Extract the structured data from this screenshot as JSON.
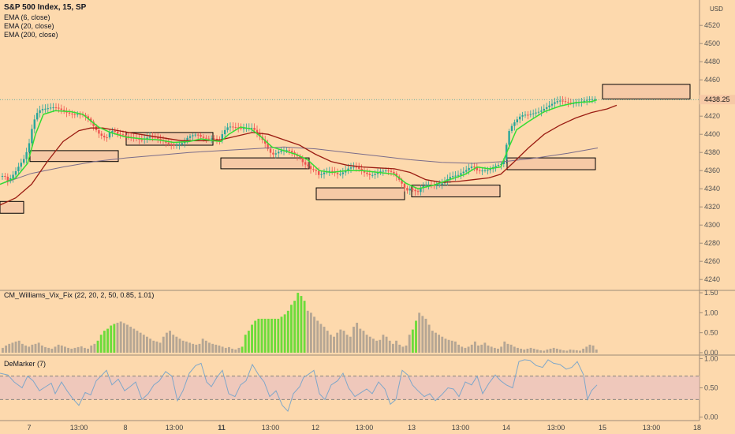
{
  "header": {
    "title": "S&P 500 Index, 15, SP",
    "indicators": [
      "EMA (6, close)",
      "EMA (20, close)",
      "EMA (200, close)"
    ]
  },
  "currency": "USD",
  "last_price": "4438.25",
  "colors": {
    "background": "#fdd9ad",
    "ema6": "#33dd33",
    "ema20": "#9b1c12",
    "ema200": "#7a6c8a",
    "candle_up": "#26a69a",
    "candle_down": "#ef5350",
    "vix_green": "#6cdc3a",
    "vix_gray": "#b5a694",
    "demarker": "#7fa7c9",
    "zone_fill": "#f6c9a6",
    "band_fill": "#e8c0c0"
  },
  "chart_data": [
    {
      "type": "candlestick",
      "title": "S&P 500 Index, 15, SP",
      "y_axis": {
        "ticks": [
          4240,
          4260,
          4280,
          4300,
          4320,
          4340,
          4360,
          4380,
          4400,
          4420,
          4440,
          4460,
          4480,
          4500,
          4520
        ],
        "ylim": [
          4228,
          4548
        ]
      },
      "x_axis": {
        "ticks": [
          "7",
          "13:00",
          "8",
          "13:00",
          "11",
          "13:00",
          "12",
          "13:00",
          "13",
          "13:00",
          "14",
          "13:00",
          "15",
          "13:00",
          "18"
        ]
      },
      "close_path": [
        [
          0,
          4354
        ],
        [
          5,
          4358
        ],
        [
          10,
          4350
        ],
        [
          20,
          4358
        ],
        [
          30,
          4370
        ],
        [
          36,
          4385
        ],
        [
          41,
          4410
        ],
        [
          46,
          4425
        ],
        [
          52,
          4430
        ],
        [
          60,
          4428
        ],
        [
          70,
          4427
        ],
        [
          80,
          4426
        ],
        [
          90,
          4425
        ],
        [
          100,
          4423
        ],
        [
          108,
          4418
        ],
        [
          115,
          4412
        ],
        [
          120,
          4406
        ],
        [
          125,
          4402
        ],
        [
          130,
          4400
        ],
        [
          135,
          4398
        ],
        [
          140,
          4405
        ],
        [
          145,
          4403
        ],
        [
          150,
          4398
        ],
        [
          160,
          4396
        ],
        [
          170,
          4398
        ],
        [
          180,
          4396
        ],
        [
          190,
          4396
        ],
        [
          200,
          4393
        ],
        [
          210,
          4392
        ],
        [
          220,
          4390
        ],
        [
          230,
          4389
        ],
        [
          240,
          4395
        ],
        [
          250,
          4400
        ],
        [
          260,
          4398
        ],
        [
          270,
          4396
        ],
        [
          278,
          4390
        ],
        [
          283,
          4400
        ],
        [
          290,
          4408
        ],
        [
          300,
          4410
        ],
        [
          310,
          4408
        ],
        [
          320,
          4405
        ],
        [
          325,
          4400
        ],
        [
          330,
          4395
        ],
        [
          335,
          4392
        ],
        [
          340,
          4385
        ],
        [
          345,
          4380
        ],
        [
          355,
          4382
        ],
        [
          365,
          4380
        ],
        [
          370,
          4378
        ],
        [
          375,
          4376
        ],
        [
          380,
          4376
        ],
        [
          385,
          4370
        ],
        [
          390,
          4368
        ],
        [
          395,
          4362
        ],
        [
          400,
          4360
        ],
        [
          405,
          4352
        ],
        [
          410,
          4355
        ],
        [
          420,
          4360
        ],
        [
          430,
          4358
        ],
        [
          440,
          4362
        ],
        [
          450,
          4362
        ],
        [
          455,
          4360
        ],
        [
          460,
          4358
        ],
        [
          470,
          4357
        ],
        [
          480,
          4360
        ],
        [
          490,
          4358
        ],
        [
          500,
          4355
        ],
        [
          507,
          4350
        ],
        [
          512,
          4345
        ],
        [
          515,
          4340
        ],
        [
          520,
          4342
        ],
        [
          525,
          4338
        ],
        [
          530,
          4335
        ],
        [
          535,
          4340
        ],
        [
          540,
          4342
        ],
        [
          550,
          4345
        ],
        [
          560,
          4348
        ],
        [
          570,
          4352
        ],
        [
          580,
          4352
        ],
        [
          590,
          4360
        ],
        [
          595,
          4365
        ],
        [
          600,
          4368
        ],
        [
          605,
          4362
        ],
        [
          610,
          4360
        ],
        [
          620,
          4358
        ],
        [
          630,
          4365
        ],
        [
          638,
          4370
        ],
        [
          641,
          4385
        ],
        [
          645,
          4405
        ],
        [
          650,
          4412
        ],
        [
          660,
          4418
        ],
        [
          670,
          4420
        ],
        [
          680,
          4426
        ],
        [
          690,
          4430
        ],
        [
          700,
          4432
        ],
        [
          710,
          4435
        ],
        [
          720,
          4436
        ],
        [
          730,
          4437
        ],
        [
          740,
          4436
        ],
        [
          750,
          4436
        ],
        [
          757,
          4438
        ]
      ],
      "ema6": [
        [
          0,
          4345
        ],
        [
          20,
          4352
        ],
        [
          35,
          4368
        ],
        [
          45,
          4400
        ],
        [
          55,
          4422
        ],
        [
          70,
          4426
        ],
        [
          90,
          4425
        ],
        [
          105,
          4422
        ],
        [
          115,
          4415
        ],
        [
          125,
          4408
        ],
        [
          140,
          4402
        ],
        [
          160,
          4397
        ],
        [
          180,
          4395
        ],
        [
          200,
          4394
        ],
        [
          220,
          4391
        ],
        [
          240,
          4392
        ],
        [
          255,
          4395
        ],
        [
          270,
          4393
        ],
        [
          280,
          4392
        ],
        [
          290,
          4400
        ],
        [
          305,
          4408
        ],
        [
          318,
          4406
        ],
        [
          330,
          4398
        ],
        [
          345,
          4386
        ],
        [
          360,
          4382
        ],
        [
          375,
          4378
        ],
        [
          390,
          4372
        ],
        [
          405,
          4360
        ],
        [
          420,
          4358
        ],
        [
          440,
          4360
        ],
        [
          460,
          4360
        ],
        [
          480,
          4358
        ],
        [
          500,
          4356
        ],
        [
          515,
          4346
        ],
        [
          530,
          4340
        ],
        [
          550,
          4344
        ],
        [
          570,
          4350
        ],
        [
          590,
          4356
        ],
        [
          605,
          4364
        ],
        [
          620,
          4362
        ],
        [
          635,
          4364
        ],
        [
          645,
          4385
        ],
        [
          655,
          4405
        ],
        [
          670,
          4414
        ],
        [
          690,
          4425
        ],
        [
          710,
          4431
        ],
        [
          730,
          4435
        ],
        [
          750,
          4436
        ],
        [
          757,
          4438
        ]
      ],
      "ema20": [
        [
          0,
          4322
        ],
        [
          20,
          4330
        ],
        [
          40,
          4345
        ],
        [
          60,
          4370
        ],
        [
          80,
          4392
        ],
        [
          100,
          4404
        ],
        [
          115,
          4407
        ],
        [
          130,
          4407
        ],
        [
          150,
          4404
        ],
        [
          170,
          4401
        ],
        [
          200,
          4397
        ],
        [
          230,
          4393
        ],
        [
          260,
          4393
        ],
        [
          280,
          4394
        ],
        [
          300,
          4398
        ],
        [
          320,
          4402
        ],
        [
          340,
          4400
        ],
        [
          360,
          4394
        ],
        [
          380,
          4388
        ],
        [
          400,
          4378
        ],
        [
          420,
          4370
        ],
        [
          440,
          4366
        ],
        [
          460,
          4364
        ],
        [
          480,
          4363
        ],
        [
          500,
          4362
        ],
        [
          520,
          4358
        ],
        [
          540,
          4350
        ],
        [
          560,
          4347
        ],
        [
          580,
          4348
        ],
        [
          600,
          4350
        ],
        [
          620,
          4352
        ],
        [
          635,
          4356
        ],
        [
          650,
          4368
        ],
        [
          670,
          4385
        ],
        [
          690,
          4400
        ],
        [
          710,
          4410
        ],
        [
          730,
          4418
        ],
        [
          750,
          4424
        ],
        [
          770,
          4428
        ],
        [
          782,
          4432
        ]
      ],
      "ema200": [
        [
          0,
          4345
        ],
        [
          40,
          4357
        ],
        [
          80,
          4364
        ],
        [
          120,
          4370
        ],
        [
          160,
          4374
        ],
        [
          200,
          4377
        ],
        [
          240,
          4380
        ],
        [
          280,
          4382
        ],
        [
          320,
          4384
        ],
        [
          360,
          4386
        ],
        [
          400,
          4384
        ],
        [
          440,
          4380
        ],
        [
          480,
          4376
        ],
        [
          520,
          4372
        ],
        [
          560,
          4369
        ],
        [
          600,
          4368
        ],
        [
          640,
          4370
        ],
        [
          680,
          4374
        ],
        [
          720,
          4379
        ],
        [
          758,
          4385
        ]
      ]
    },
    {
      "type": "bar",
      "title": "CM_Williams_Vix_Fix (22, 20, 2, 50, 0.85, 1.01)",
      "y_axis": {
        "ticks": [
          0.0,
          0.5,
          1.0,
          1.5
        ],
        "ylim": [
          -0.06,
          1.56
        ]
      },
      "values": [
        0.12,
        0.18,
        0.22,
        0.25,
        0.28,
        0.3,
        0.22,
        0.18,
        0.15,
        0.2,
        0.22,
        0.25,
        0.18,
        0.14,
        0.12,
        0.1,
        0.15,
        0.2,
        0.18,
        0.15,
        0.12,
        0.1,
        0.12,
        0.14,
        0.16,
        0.12,
        0.1,
        0.18,
        0.22,
        0.3,
        0.45,
        0.55,
        0.6,
        0.68,
        0.72,
        0.75,
        0.78,
        0.74,
        0.7,
        0.65,
        0.6,
        0.55,
        0.5,
        0.45,
        0.4,
        0.35,
        0.3,
        0.28,
        0.25,
        0.4,
        0.5,
        0.55,
        0.45,
        0.4,
        0.35,
        0.3,
        0.28,
        0.25,
        0.22,
        0.2,
        0.22,
        0.35,
        0.3,
        0.25,
        0.22,
        0.2,
        0.18,
        0.15,
        0.12,
        0.14,
        0.1,
        0.08,
        0.12,
        0.15,
        0.45,
        0.55,
        0.7,
        0.8,
        0.85,
        0.85,
        0.85,
        0.85,
        0.85,
        0.85,
        0.85,
        0.9,
        0.96,
        1.05,
        1.2,
        1.3,
        1.5,
        1.42,
        1.3,
        1.05,
        1.0,
        0.9,
        0.8,
        0.72,
        0.65,
        0.55,
        0.45,
        0.4,
        0.5,
        0.58,
        0.55,
        0.45,
        0.4,
        0.65,
        0.75,
        0.6,
        0.55,
        0.45,
        0.4,
        0.35,
        0.3,
        0.32,
        0.45,
        0.4,
        0.3,
        0.22,
        0.3,
        0.2,
        0.15,
        0.18,
        0.45,
        0.58,
        0.8,
        1.0,
        0.92,
        0.85,
        0.7,
        0.55,
        0.5,
        0.45,
        0.4,
        0.35,
        0.32,
        0.3,
        0.28,
        0.2,
        0.15,
        0.12,
        0.15,
        0.2,
        0.28,
        0.18,
        0.2,
        0.25,
        0.18,
        0.15,
        0.12,
        0.1,
        0.15,
        0.28,
        0.22,
        0.2,
        0.15,
        0.12,
        0.1,
        0.08,
        0.1,
        0.12,
        0.1,
        0.08,
        0.06,
        0.05,
        0.08,
        0.1,
        0.12,
        0.1,
        0.08,
        0.06,
        0.05,
        0.08,
        0.07,
        0.06,
        0.05,
        0.1,
        0.15,
        0.2,
        0.18,
        0.08
      ],
      "highlighted_ranges": [
        [
          29,
          34
        ],
        [
          73,
          92
        ],
        [
          125,
          126
        ],
        [
          182,
          183
        ]
      ]
    },
    {
      "type": "line",
      "title": "DeMarker (7)",
      "y_axis": {
        "ticks": [
          0.0,
          0.5,
          1.0
        ],
        "ylim": [
          -0.06,
          1.06
        ]
      },
      "reference_lines": [
        0.3,
        0.7
      ],
      "x": [
        0,
        10,
        18,
        28,
        35,
        42,
        50,
        58,
        65,
        70,
        78,
        85,
        92,
        100,
        108,
        115,
        122,
        128,
        135,
        142,
        150,
        158,
        165,
        172,
        180,
        188,
        195,
        202,
        210,
        218,
        225,
        232,
        240,
        248,
        255,
        262,
        268,
        275,
        282,
        290,
        298,
        305,
        312,
        320,
        328,
        335,
        342,
        350,
        358,
        365,
        372,
        380,
        385,
        390,
        398,
        405,
        412,
        420,
        428,
        435,
        442,
        450,
        458,
        465,
        472,
        480,
        488,
        495,
        502,
        510,
        517,
        523,
        530,
        538,
        545,
        552,
        560,
        568,
        575,
        582,
        590,
        598,
        605,
        612,
        620,
        628,
        635,
        642,
        650,
        658,
        665,
        672,
        680,
        688,
        695,
        702,
        710,
        718,
        725,
        732,
        740,
        745,
        750,
        757
      ],
      "y": [
        0.75,
        0.72,
        0.6,
        0.5,
        0.7,
        0.62,
        0.45,
        0.52,
        0.58,
        0.4,
        0.6,
        0.45,
        0.32,
        0.2,
        0.42,
        0.38,
        0.62,
        0.7,
        0.8,
        0.55,
        0.65,
        0.45,
        0.52,
        0.6,
        0.3,
        0.4,
        0.55,
        0.62,
        0.78,
        0.7,
        0.28,
        0.45,
        0.75,
        0.88,
        0.92,
        0.6,
        0.52,
        0.68,
        0.8,
        0.4,
        0.35,
        0.55,
        0.62,
        0.9,
        0.72,
        0.6,
        0.35,
        0.45,
        0.2,
        0.1,
        0.4,
        0.52,
        0.68,
        0.72,
        0.8,
        0.4,
        0.3,
        0.55,
        0.62,
        0.75,
        0.5,
        0.35,
        0.42,
        0.48,
        0.4,
        0.6,
        0.48,
        0.22,
        0.3,
        0.8,
        0.72,
        0.55,
        0.45,
        0.35,
        0.4,
        0.28,
        0.38,
        0.5,
        0.48,
        0.35,
        0.6,
        0.55,
        0.7,
        0.4,
        0.58,
        0.72,
        0.62,
        0.55,
        0.5,
        0.95,
        0.98,
        0.97,
        0.88,
        0.85,
        0.98,
        0.92,
        0.9,
        0.82,
        0.85,
        0.95,
        0.72,
        0.3,
        0.45,
        0.55
      ]
    }
  ],
  "zones": [
    {
      "x1": 0,
      "x2": 30,
      "y1": 4313,
      "y2": 4326
    },
    {
      "x1": 38,
      "x2": 150,
      "y1": 4370,
      "y2": 4382
    },
    {
      "x1": 160,
      "x2": 270,
      "y1": 4388,
      "y2": 4402
    },
    {
      "x1": 280,
      "x2": 392,
      "y1": 4362,
      "y2": 4374
    },
    {
      "x1": 401,
      "x2": 513,
      "y1": 4328,
      "y2": 4341
    },
    {
      "x1": 522,
      "x2": 634,
      "y1": 4331,
      "y2": 4344
    },
    {
      "x1": 643,
      "x2": 755,
      "y1": 4361,
      "y2": 4374
    },
    {
      "x1": 764,
      "x2": 875,
      "y1": 4439,
      "y2": 4455
    }
  ]
}
